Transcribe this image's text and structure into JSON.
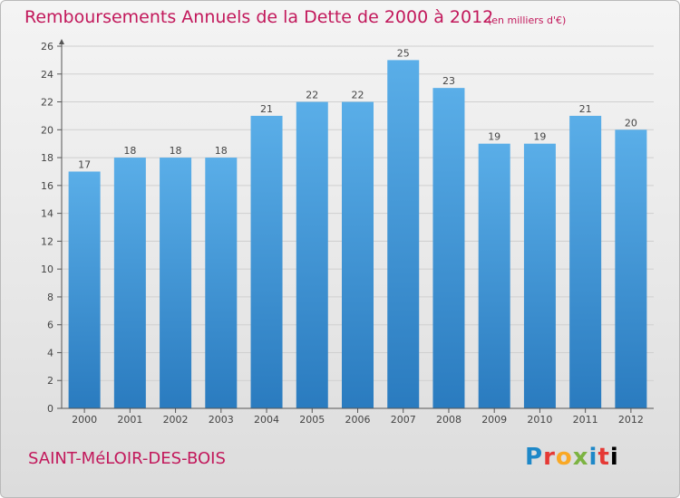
{
  "header": {
    "title": "Remboursements Annuels de la Dette de 2000 à 2012",
    "subtitle": "(en milliers d'€)"
  },
  "footer": {
    "commune": "SAINT-MéLOIR-DES-BOIS",
    "logo_letters": [
      "P",
      "r",
      "o",
      "x",
      "i",
      "t",
      "i"
    ]
  },
  "colors": {
    "title": "#c2185b",
    "bar_top": "#5aaee8",
    "bar_bottom": "#2a7bbf",
    "gridline": "#cfcfcf"
  },
  "chart_data": {
    "type": "bar",
    "title": "Remboursements Annuels de la Dette de 2000 à 2012",
    "xlabel": "",
    "ylabel": "",
    "categories": [
      "2000",
      "2001",
      "2002",
      "2003",
      "2004",
      "2005",
      "2006",
      "2007",
      "2008",
      "2009",
      "2010",
      "2011",
      "2012"
    ],
    "values": [
      17,
      18,
      18,
      18,
      21,
      22,
      22,
      25,
      23,
      19,
      19,
      21,
      20
    ],
    "ylim": [
      0,
      26
    ],
    "yticks": [
      0,
      2,
      4,
      6,
      8,
      10,
      12,
      14,
      16,
      18,
      20,
      22,
      24,
      26
    ],
    "grid": true,
    "data_labels": true
  }
}
